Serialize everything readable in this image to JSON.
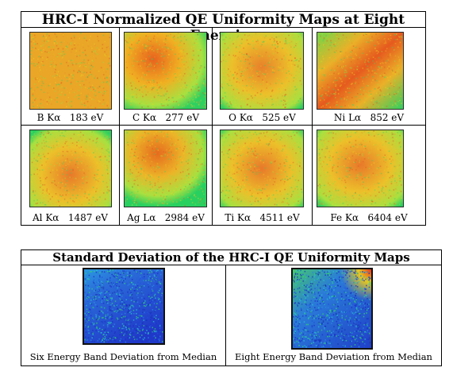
{
  "top_panel": {
    "title": "HRC-I Normalized QE Uniformity Maps at Eight Energies",
    "maps": [
      {
        "label": "B Kα   183 eV",
        "pattern": "noise-uniform"
      },
      {
        "label": "C Kα   277 eV",
        "pattern": "upper-left-hot"
      },
      {
        "label": "O Kα   525 eV",
        "pattern": "center-warm"
      },
      {
        "label": "Ni Lα   852 eV",
        "pattern": "diagonal-band"
      },
      {
        "label": "Al Kα   1487 eV",
        "pattern": "center-warm"
      },
      {
        "label": "Ag Lα   2984 eV",
        "pattern": "upper-hot-band"
      },
      {
        "label": "Ti Kα   4511 eV",
        "pattern": "center-warm"
      },
      {
        "label": "Fe Kα   6404 eV",
        "pattern": "center-warm"
      }
    ]
  },
  "bottom_panel": {
    "title": "Standard Deviation of the HRC-I QE Uniformity Maps",
    "maps": [
      {
        "label": "Six Energy Band Deviation from Median",
        "pattern": "blue-noise"
      },
      {
        "label": "Eight Energy Band Deviation from Median",
        "pattern": "blue-noise-hot-corner"
      }
    ]
  },
  "colors": {
    "low": "#1e3cff",
    "mid": "#22d26e",
    "warm": "#e6c81e",
    "hot": "#e8321e",
    "frame": "#000000"
  }
}
